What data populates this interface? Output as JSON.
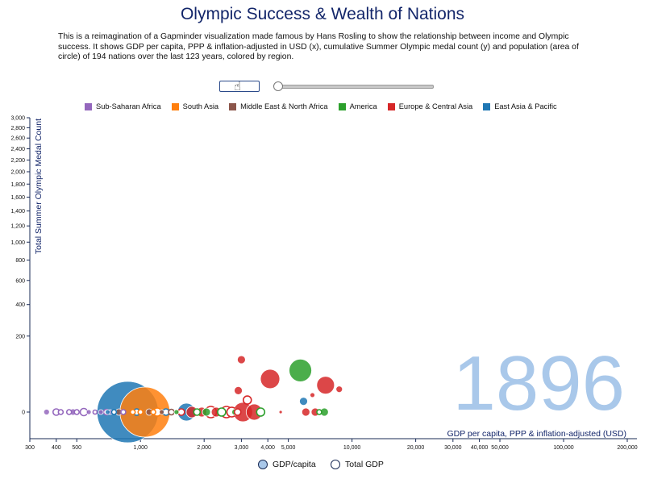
{
  "title": "Olympic Success & Wealth of Nations",
  "description": "This is a reimagination of a Gapminder visualization made famous by Hans Rosling to show the relationship between income and Olympic success. It shows GDP per capita, PPP & inflation-adjusted in USD (x), cumulative Summer Olympic medal count (y) and population (area of circle) of 194 nations over the last 123 years, colored by region.",
  "controls": {
    "slider_value": 0
  },
  "legend": [
    {
      "label": "Sub-Saharan Africa",
      "color": "#9467bd"
    },
    {
      "label": "South Asia",
      "color": "#ff7f0e"
    },
    {
      "label": "Middle East & North Africa",
      "color": "#8c564b"
    },
    {
      "label": "America",
      "color": "#2ca02c"
    },
    {
      "label": "Europe & Central Asia",
      "color": "#d62728"
    },
    {
      "label": "East Asia & Pacific",
      "color": "#1f77b4"
    }
  ],
  "toggles": {
    "gdp_per_capita": "GDP/capita",
    "total_gdp": "Total GDP"
  },
  "chart_data": {
    "type": "scatter",
    "year_label": "1896",
    "xlabel": "GDP per capita, PPP & inflation-adjusted (USD)",
    "ylabel": "Total Summer Olympic Medal Count",
    "x_scale": "log",
    "y_scale": "sqrt",
    "xlim": [
      300,
      200000
    ],
    "ylim": [
      0,
      3000
    ],
    "x_ticks": [
      300,
      400,
      500,
      1000,
      2000,
      3000,
      4000,
      5000,
      10000,
      20000,
      30000,
      40000,
      50000,
      100000,
      200000
    ],
    "y_ticks": [
      0,
      200,
      400,
      600,
      800,
      1000,
      1200,
      1400,
      1600,
      1800,
      2000,
      2200,
      2400,
      2600,
      2800,
      3000
    ],
    "points": [
      {
        "x": 360,
        "y": 0,
        "r": 3.5,
        "region": "Sub-Saharan Africa"
      },
      {
        "x": 400,
        "y": 0,
        "r": 4,
        "region": "Sub-Saharan Africa",
        "hollow": true
      },
      {
        "x": 420,
        "y": 0,
        "r": 3,
        "region": "Sub-Saharan Africa",
        "hollow": true
      },
      {
        "x": 460,
        "y": 0,
        "r": 3,
        "region": "Sub-Saharan Africa",
        "hollow": true
      },
      {
        "x": 480,
        "y": 0,
        "r": 4,
        "region": "Sub-Saharan Africa"
      },
      {
        "x": 500,
        "y": 0,
        "r": 3,
        "region": "Sub-Saharan Africa",
        "hollow": true
      },
      {
        "x": 540,
        "y": 0,
        "r": 4.5,
        "region": "Sub-Saharan Africa",
        "hollow": true
      },
      {
        "x": 570,
        "y": 0,
        "r": 3,
        "region": "Sub-Saharan Africa"
      },
      {
        "x": 610,
        "y": 0,
        "r": 2.5,
        "region": "Sub-Saharan Africa",
        "hollow": true
      },
      {
        "x": 650,
        "y": 0,
        "r": 3,
        "region": "Sub-Saharan Africa"
      },
      {
        "x": 690,
        "y": 0,
        "r": 3.5,
        "region": "Sub-Saharan Africa",
        "hollow": true
      },
      {
        "x": 720,
        "y": 0,
        "r": 3,
        "region": "Sub-Saharan Africa"
      },
      {
        "x": 700,
        "y": 0,
        "r": 3,
        "region": "East Asia & Pacific"
      },
      {
        "x": 750,
        "y": 0,
        "r": 3,
        "region": "East Asia & Pacific",
        "hollow": true
      },
      {
        "x": 790,
        "y": 0,
        "r": 4,
        "region": "Middle East & North Africa"
      },
      {
        "x": 830,
        "y": 0,
        "r": 3,
        "region": "Sub-Saharan Africa",
        "hollow": true
      },
      {
        "x": 870,
        "y": 0,
        "r": 38,
        "region": "East Asia & Pacific"
      },
      {
        "x": 920,
        "y": 0,
        "r": 3,
        "region": "South Asia",
        "hollow": true
      },
      {
        "x": 960,
        "y": 0,
        "r": 4,
        "region": "East Asia & Pacific",
        "hollow": true
      },
      {
        "x": 1050,
        "y": 0,
        "r": 31,
        "region": "South Asia"
      },
      {
        "x": 1000,
        "y": 0,
        "r": 3,
        "region": "South Asia",
        "hollow": true
      },
      {
        "x": 1100,
        "y": 0,
        "r": 4,
        "region": "Middle East & North Africa"
      },
      {
        "x": 1150,
        "y": 0,
        "r": 3,
        "region": "South Asia",
        "hollow": true
      },
      {
        "x": 1200,
        "y": 0,
        "r": 5,
        "region": "South Asia",
        "hollow": true
      },
      {
        "x": 1260,
        "y": 0,
        "r": 3,
        "region": "Middle East & North Africa"
      },
      {
        "x": 1320,
        "y": 0,
        "r": 4,
        "region": "East Asia & Pacific",
        "hollow": true
      },
      {
        "x": 1400,
        "y": 0,
        "r": 3.5,
        "region": "Middle East & North Africa",
        "hollow": true
      },
      {
        "x": 1480,
        "y": 0,
        "r": 3,
        "region": "America"
      },
      {
        "x": 1560,
        "y": 0,
        "r": 4,
        "region": "Europe & Central Asia",
        "hollow": true
      },
      {
        "x": 1650,
        "y": 0,
        "r": 11,
        "region": "East Asia & Pacific"
      },
      {
        "x": 1750,
        "y": 0,
        "r": 7,
        "region": "Europe & Central Asia"
      },
      {
        "x": 1850,
        "y": 0,
        "r": 4,
        "region": "America",
        "hollow": true
      },
      {
        "x": 1950,
        "y": 0,
        "r": 6,
        "region": "Europe & Central Asia"
      },
      {
        "x": 2050,
        "y": 0,
        "r": 5,
        "region": "America"
      },
      {
        "x": 2150,
        "y": 0,
        "r": 7,
        "region": "Europe & Central Asia",
        "hollow": true
      },
      {
        "x": 2280,
        "y": 0,
        "r": 6,
        "region": "Europe & Central Asia"
      },
      {
        "x": 2420,
        "y": 0,
        "r": 5,
        "region": "America",
        "hollow": true
      },
      {
        "x": 2550,
        "y": 0,
        "r": 7,
        "region": "Europe & Central Asia",
        "hollow": true
      },
      {
        "x": 2700,
        "y": 0,
        "r": 6,
        "region": "Europe & Central Asia",
        "hollow": true
      },
      {
        "x": 2800,
        "y": 0,
        "r": 4,
        "region": "America"
      },
      {
        "x": 2880,
        "y": 0,
        "r": 4,
        "region": "Europe & Central Asia",
        "hollow": true
      },
      {
        "x": 2900,
        "y": 16,
        "r": 5,
        "region": "Europe & Central Asia"
      },
      {
        "x": 3000,
        "y": 95,
        "r": 5,
        "region": "Europe & Central Asia"
      },
      {
        "x": 3050,
        "y": 0,
        "r": 12,
        "region": "Europe & Central Asia"
      },
      {
        "x": 3200,
        "y": 5,
        "r": 5,
        "region": "Europe & Central Asia",
        "hollow": true
      },
      {
        "x": 3450,
        "y": 0,
        "r": 10,
        "region": "Europe & Central Asia"
      },
      {
        "x": 3700,
        "y": 0,
        "r": 5,
        "region": "America",
        "hollow": true
      },
      {
        "x": 4100,
        "y": 38,
        "r": 12,
        "region": "Europe & Central Asia"
      },
      {
        "x": 4600,
        "y": 0,
        "r": 2,
        "region": "Europe & Central Asia"
      },
      {
        "x": 5700,
        "y": 60,
        "r": 14,
        "region": "America"
      },
      {
        "x": 5900,
        "y": 4,
        "r": 5,
        "region": "East Asia & Pacific"
      },
      {
        "x": 6050,
        "y": 0,
        "r": 5,
        "region": "Europe & Central Asia"
      },
      {
        "x": 6500,
        "y": 10,
        "r": 3,
        "region": "Europe & Central Asia"
      },
      {
        "x": 6700,
        "y": 0,
        "r": 5,
        "region": "Europe & Central Asia"
      },
      {
        "x": 7000,
        "y": 0,
        "r": 3,
        "region": "America",
        "hollow": true
      },
      {
        "x": 7400,
        "y": 0,
        "r": 5,
        "region": "America"
      },
      {
        "x": 7500,
        "y": 25,
        "r": 11,
        "region": "Europe & Central Asia"
      },
      {
        "x": 8700,
        "y": 18,
        "r": 4,
        "region": "Europe & Central Asia"
      }
    ]
  }
}
